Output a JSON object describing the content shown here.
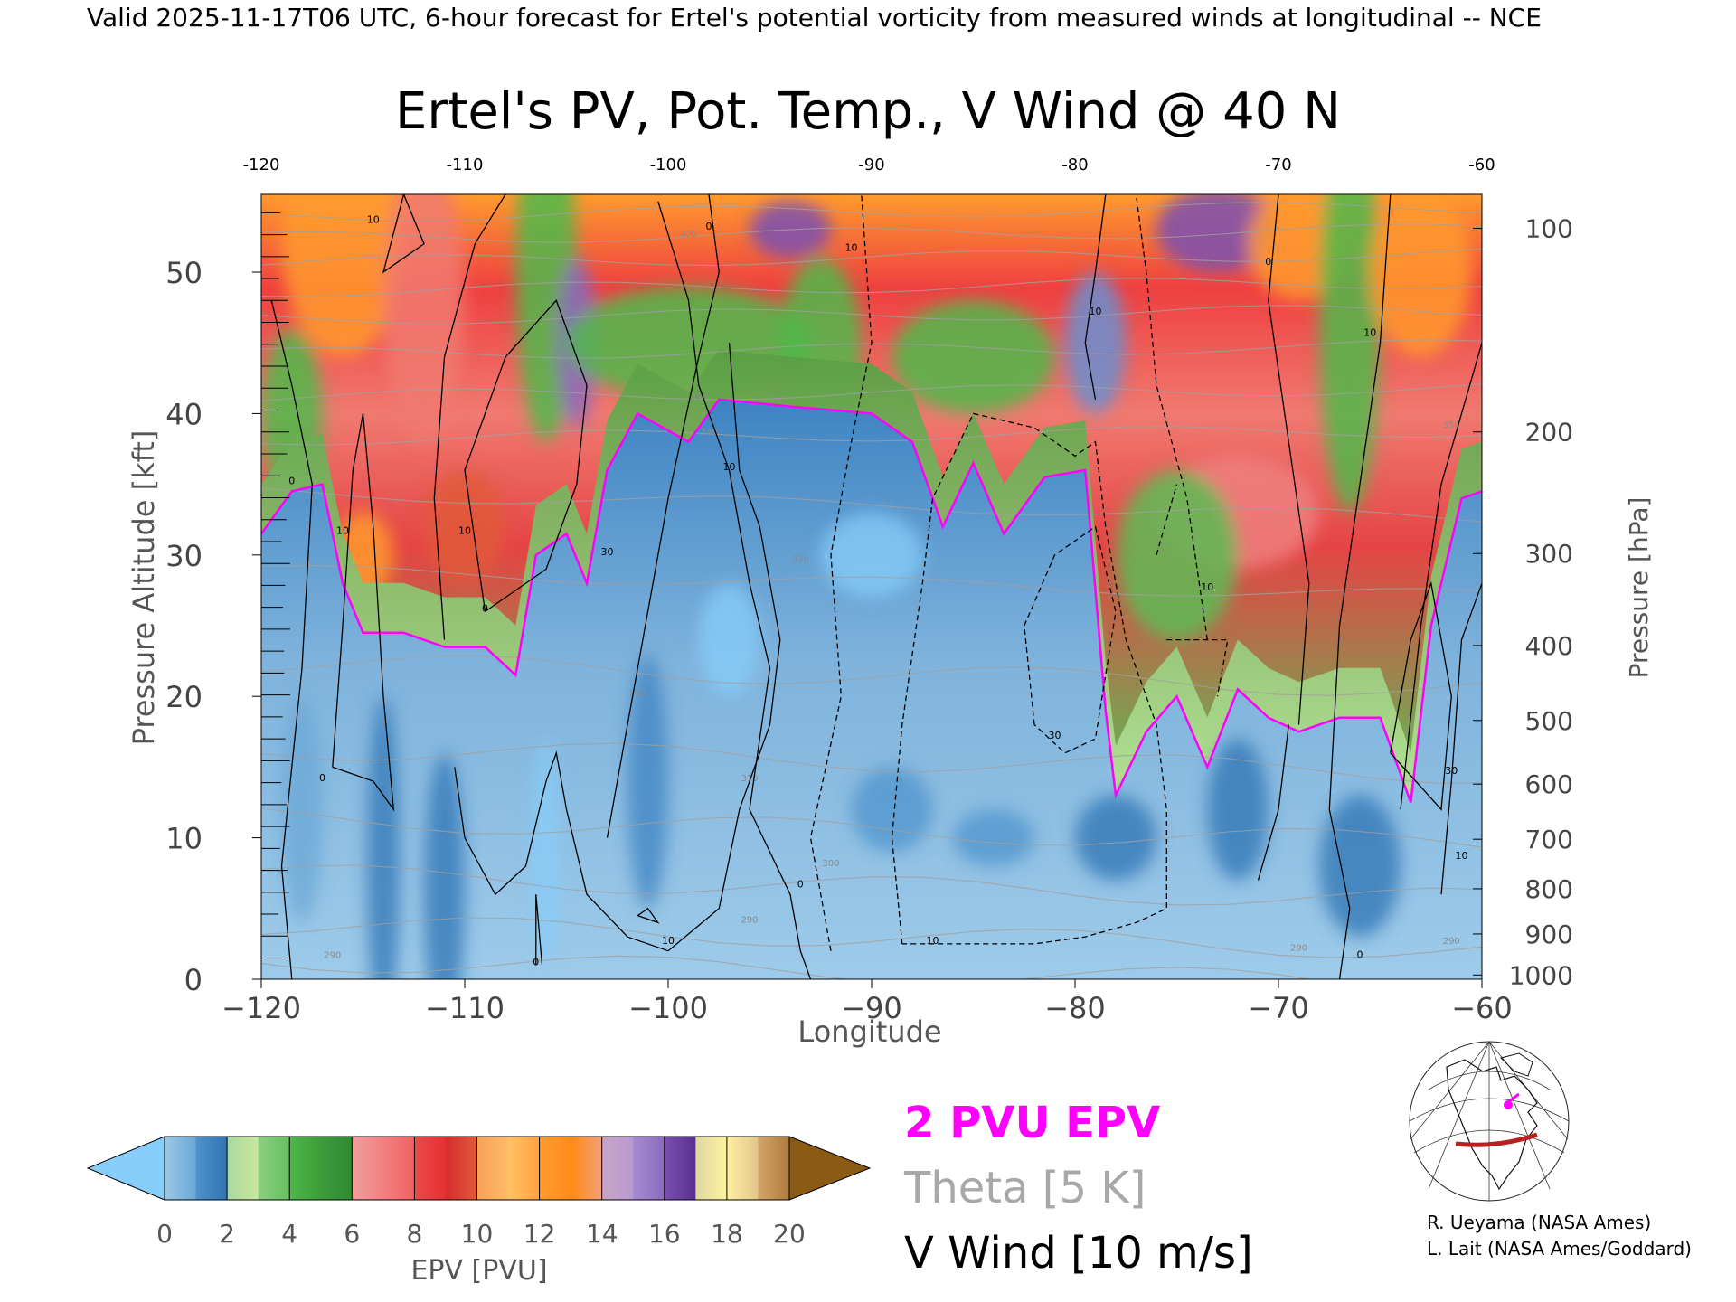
{
  "header": {
    "valid_line": "Valid 2025-11-17T06 UTC, 6-hour forecast for Ertel's potential vorticity from measured winds at longitudinal -- NCE"
  },
  "chart_data": {
    "type": "heatmap",
    "title": "Ertel's PV, Pot. Temp., V Wind @ 40 N",
    "xlabel": "Longitude",
    "ylabel_left": "Pressure Altitude [kft]",
    "ylabel_right": "Pressure [hPa]",
    "xlim": [
      -120,
      -60
    ],
    "ylim_kft": [
      0,
      55.5
    ],
    "x_ticks": [
      "-120",
      "-110",
      "-100",
      "-90",
      "-80",
      "-70",
      "-60"
    ],
    "top_x_ticks": [
      "-120",
      "-110",
      "-100",
      "-90",
      "-80",
      "-70",
      "-60"
    ],
    "y_ticks_kft": [
      "0",
      "10",
      "20",
      "30",
      "40",
      "50"
    ],
    "pressure_ticks": [
      {
        "hpa": "100",
        "kft": 53.1
      },
      {
        "hpa": "200",
        "kft": 38.7
      },
      {
        "hpa": "300",
        "kft": 30.1
      },
      {
        "hpa": "400",
        "kft": 23.6
      },
      {
        "hpa": "500",
        "kft": 18.3
      },
      {
        "hpa": "600",
        "kft": 13.8
      },
      {
        "hpa": "700",
        "kft": 9.9
      },
      {
        "hpa": "800",
        "kft": 6.4
      },
      {
        "hpa": "900",
        "kft": 3.2
      },
      {
        "hpa": "1000",
        "kft": 0.3
      }
    ],
    "colorbar": {
      "label": "EPV [PVU]",
      "ticks": [
        "0",
        "2",
        "4",
        "6",
        "8",
        "10",
        "12",
        "14",
        "16",
        "18",
        "20"
      ],
      "under_color": "#87cefa",
      "over_color": "#8b5a14",
      "bands": [
        {
          "from": 0,
          "to": 1,
          "c1": "#9cc8e6",
          "c2": "#6aa7d6"
        },
        {
          "from": 1,
          "to": 2,
          "c1": "#4f93cc",
          "c2": "#2f73b4"
        },
        {
          "from": 2,
          "to": 3,
          "c1": "#a9d9a0",
          "c2": "#c9e89a"
        },
        {
          "from": 3,
          "to": 4,
          "c1": "#8bd07f",
          "c2": "#68bf5e"
        },
        {
          "from": 4,
          "to": 5,
          "c1": "#4fb84a",
          "c2": "#3b9e39"
        },
        {
          "from": 5,
          "to": 6,
          "c1": "#3d9a3d",
          "c2": "#2e8a2e"
        },
        {
          "from": 6,
          "to": 7,
          "c1": "#ef9f9f",
          "c2": "#f47f7f"
        },
        {
          "from": 7,
          "to": 8,
          "c1": "#f28080",
          "c2": "#f06060"
        },
        {
          "from": 8,
          "to": 9,
          "c1": "#ec4a4a",
          "c2": "#e53030"
        },
        {
          "from": 9,
          "to": 10,
          "c1": "#d92b2b",
          "c2": "#e05a3a"
        },
        {
          "from": 10,
          "to": 11,
          "c1": "#f6a25a",
          "c2": "#ffbb66"
        },
        {
          "from": 11,
          "to": 12,
          "c1": "#ffc266",
          "c2": "#ffa040"
        },
        {
          "from": 12,
          "to": 13,
          "c1": "#ff9a30",
          "c2": "#ff8c1a"
        },
        {
          "from": 13,
          "to": 14,
          "c1": "#ff8a15",
          "c2": "#f2a07a"
        },
        {
          "from": 14,
          "to": 15,
          "c1": "#c9a4c8",
          "c2": "#b89ad0"
        },
        {
          "from": 15,
          "to": 16,
          "c1": "#a68bd0",
          "c2": "#8b6ac0"
        },
        {
          "from": 16,
          "to": 17,
          "c1": "#7a4fb2",
          "c2": "#5a2f90"
        },
        {
          "from": 17,
          "to": 18,
          "c1": "#dcd8a0",
          "c2": "#fff3a0"
        },
        {
          "from": 18,
          "to": 19,
          "c1": "#fff0a0",
          "c2": "#e2c48a"
        },
        {
          "from": 19,
          "to": 20,
          "c1": "#d2a56a",
          "c2": "#b07a3c"
        }
      ]
    },
    "pv_field": {
      "units": "PVU",
      "description_levels": "EPV along 40N by longitude and pressure altitude",
      "tropopause_2pvu_kft": [
        {
          "lon": -120,
          "kft": 31.5
        },
        {
          "lon": -118.5,
          "kft": 34.5
        },
        {
          "lon": -117,
          "kft": 35.0
        },
        {
          "lon": -116,
          "kft": 28.0
        },
        {
          "lon": -115,
          "kft": 24.5
        },
        {
          "lon": -113,
          "kft": 24.5
        },
        {
          "lon": -111,
          "kft": 23.5
        },
        {
          "lon": -109,
          "kft": 23.5
        },
        {
          "lon": -107.5,
          "kft": 21.5
        },
        {
          "lon": -106.5,
          "kft": 30.0
        },
        {
          "lon": -105,
          "kft": 31.5
        },
        {
          "lon": -104,
          "kft": 28.0
        },
        {
          "lon": -103,
          "kft": 36.0
        },
        {
          "lon": -101.5,
          "kft": 40.0
        },
        {
          "lon": -99,
          "kft": 38.0
        },
        {
          "lon": -97.5,
          "kft": 41.0
        },
        {
          "lon": -94,
          "kft": 40.5
        },
        {
          "lon": -90,
          "kft": 40.0
        },
        {
          "lon": -88,
          "kft": 38.0
        },
        {
          "lon": -86.5,
          "kft": 32.0
        },
        {
          "lon": -85,
          "kft": 36.5
        },
        {
          "lon": -83.5,
          "kft": 31.5
        },
        {
          "lon": -81.5,
          "kft": 35.5
        },
        {
          "lon": -79.5,
          "kft": 36.0
        },
        {
          "lon": -78.5,
          "kft": 19.0
        },
        {
          "lon": -78,
          "kft": 13.0
        },
        {
          "lon": -76.5,
          "kft": 17.5
        },
        {
          "lon": -75,
          "kft": 20.0
        },
        {
          "lon": -73.5,
          "kft": 15.0
        },
        {
          "lon": -72,
          "kft": 20.5
        },
        {
          "lon": -70.5,
          "kft": 18.5
        },
        {
          "lon": -69,
          "kft": 17.5
        },
        {
          "lon": -67,
          "kft": 18.5
        },
        {
          "lon": -65,
          "kft": 18.5
        },
        {
          "lon": -63.5,
          "kft": 12.5
        },
        {
          "lon": -62.5,
          "kft": 25.0
        },
        {
          "lon": -61,
          "kft": 34.0
        },
        {
          "lon": -60,
          "kft": 34.5
        }
      ]
    },
    "theta_contours": {
      "interval_K": 5,
      "labels": [
        {
          "text": "290",
          "lon": -116.5,
          "kft": 1.5
        },
        {
          "text": "290",
          "lon": -96,
          "kft": 4.0
        },
        {
          "text": "290",
          "lon": -69,
          "kft": 2.0
        },
        {
          "text": "300",
          "lon": -92,
          "kft": 8.0
        },
        {
          "text": "310",
          "lon": -96,
          "kft": 14.0
        },
        {
          "text": "320",
          "lon": -101.5,
          "kft": 20.0
        },
        {
          "text": "330",
          "lon": -93.5,
          "kft": 29.5
        },
        {
          "text": "340",
          "lon": -98,
          "kft": 38.5
        },
        {
          "text": "350",
          "lon": -98.5,
          "kft": 41.0
        },
        {
          "text": "400",
          "lon": -99,
          "kft": 52.5
        },
        {
          "text": "350",
          "lon": -61.5,
          "kft": 39.0
        },
        {
          "text": "290",
          "lon": -61.5,
          "kft": 2.5
        }
      ]
    },
    "v_wind_contours": {
      "interval_m_s": 10,
      "labels": [
        {
          "text": "10",
          "lon": -114.5,
          "kft": 53.5
        },
        {
          "text": "10",
          "lon": -116,
          "kft": 31.5
        },
        {
          "text": "10",
          "lon": -110,
          "kft": 31.5
        },
        {
          "text": "0",
          "lon": -118.5,
          "kft": 35.0
        },
        {
          "text": "0",
          "lon": -109,
          "kft": 26.0
        },
        {
          "text": "30",
          "lon": -103,
          "kft": 30.0
        },
        {
          "text": "0",
          "lon": -117,
          "kft": 14.0
        },
        {
          "text": "0",
          "lon": -106.5,
          "kft": 1.0
        },
        {
          "text": "0",
          "lon": -98,
          "kft": 53.0
        },
        {
          "text": "10",
          "lon": -97,
          "kft": 36.0
        },
        {
          "text": "0",
          "lon": -93.5,
          "kft": 6.5
        },
        {
          "text": "10",
          "lon": -100,
          "kft": 2.5
        },
        {
          "text": "10",
          "lon": -91,
          "kft": 51.5
        },
        {
          "text": "10",
          "lon": -79,
          "kft": 47.0
        },
        {
          "text": "10",
          "lon": -87,
          "kft": 2.5
        },
        {
          "text": "30",
          "lon": -81,
          "kft": 17.0
        },
        {
          "text": "10",
          "lon": -73.5,
          "kft": 27.5
        },
        {
          "text": "0",
          "lon": -70.5,
          "kft": 50.5
        },
        {
          "text": "10",
          "lon": -65.5,
          "kft": 45.5
        },
        {
          "text": "0",
          "lon": -66,
          "kft": 1.5
        },
        {
          "text": "30",
          "lon": -61.5,
          "kft": 14.5
        },
        {
          "text": "10",
          "lon": -61,
          "kft": 8.5
        }
      ]
    }
  },
  "legend": {
    "pvu_label": "2 PVU EPV",
    "pvu_color": "#ff00ff",
    "theta_label": "Theta [5 K]",
    "theta_color": "#a8a8a8",
    "wind_label": "V Wind [10 m/s]",
    "wind_color": "#000000"
  },
  "credits": {
    "line1": "R. Ueyama (NASA Ames)",
    "line2": "L. Lait (NASA Ames/Goddard)"
  },
  "inset_map": {
    "icon": "globe-map-icon",
    "track_color": "#b8201e",
    "marker_color": "#ff00ff"
  }
}
